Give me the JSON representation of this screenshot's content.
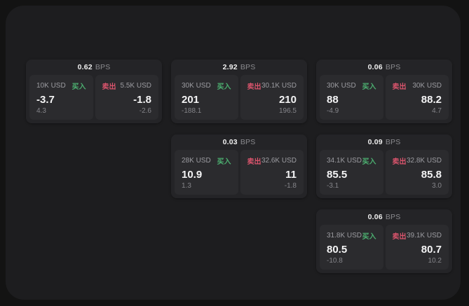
{
  "labels": {
    "bps_suffix": "BPS",
    "buy": "买入",
    "sell": "卖出"
  },
  "colors": {
    "page_background": "#131313",
    "panel_background": "#1d1d1f",
    "card_background": "#242427",
    "tile_background": "#2b2b2e",
    "buy_green": "#4caf70",
    "sell_red": "#d9546c",
    "value_white": "#f4f4f5",
    "muted_gray": "#9c9ca1"
  },
  "cards": [
    {
      "bps": "0.62",
      "buy": {
        "amount": "10K USD",
        "value": "-3.7",
        "delta": "4.3"
      },
      "sell": {
        "amount": "5.5K USD",
        "value": "-1.8",
        "delta": "-2.6"
      }
    },
    {
      "bps": "2.92",
      "buy": {
        "amount": "30K USD",
        "value": "201",
        "delta": "-188.1"
      },
      "sell": {
        "amount": "30.1K USD",
        "value": "210",
        "delta": "196.5"
      }
    },
    {
      "bps": "0.06",
      "buy": {
        "amount": "30K USD",
        "value": "88",
        "delta": "-4.9"
      },
      "sell": {
        "amount": "30K USD",
        "value": "88.2",
        "delta": "4.7"
      }
    },
    {
      "bps": "0.03",
      "buy": {
        "amount": "28K USD",
        "value": "10.9",
        "delta": "1.3"
      },
      "sell": {
        "amount": "32.6K USD",
        "value": "11",
        "delta": "-1.8"
      }
    },
    {
      "bps": "0.09",
      "buy": {
        "amount": "34.1K USD",
        "value": "85.5",
        "delta": "-3.1"
      },
      "sell": {
        "amount": "32.8K USD",
        "value": "85.8",
        "delta": "3.0"
      }
    },
    {
      "bps": "0.06",
      "buy": {
        "amount": "31.8K USD",
        "value": "80.5",
        "delta": "-10.8"
      },
      "sell": {
        "amount": "39.1K USD",
        "value": "80.7",
        "delta": "10.2"
      }
    }
  ]
}
